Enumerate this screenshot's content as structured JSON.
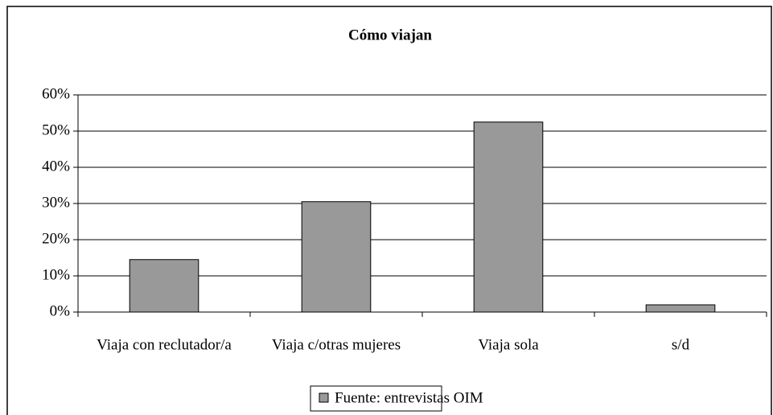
{
  "chart_data": {
    "type": "bar",
    "title": "Cómo viajan",
    "categories": [
      "Viaja con reclutador/a",
      "Viaja c/otras mujeres",
      "Viaja sola",
      "s/d"
    ],
    "series": [
      {
        "name": "Fuente: entrevistas OIM",
        "color": "#999999",
        "values": [
          14.5,
          30.5,
          52.5,
          2
        ]
      }
    ],
    "ylim": [
      0,
      60
    ],
    "yticks": [
      {
        "value": 0,
        "label": "0%"
      },
      {
        "value": 10,
        "label": "10%"
      },
      {
        "value": 20,
        "label": "20%"
      },
      {
        "value": 30,
        "label": "30%"
      },
      {
        "value": 40,
        "label": "40%"
      },
      {
        "value": 50,
        "label": "50%"
      },
      {
        "value": 60,
        "label": "60%"
      }
    ],
    "grid": true,
    "legend": "bottom"
  }
}
